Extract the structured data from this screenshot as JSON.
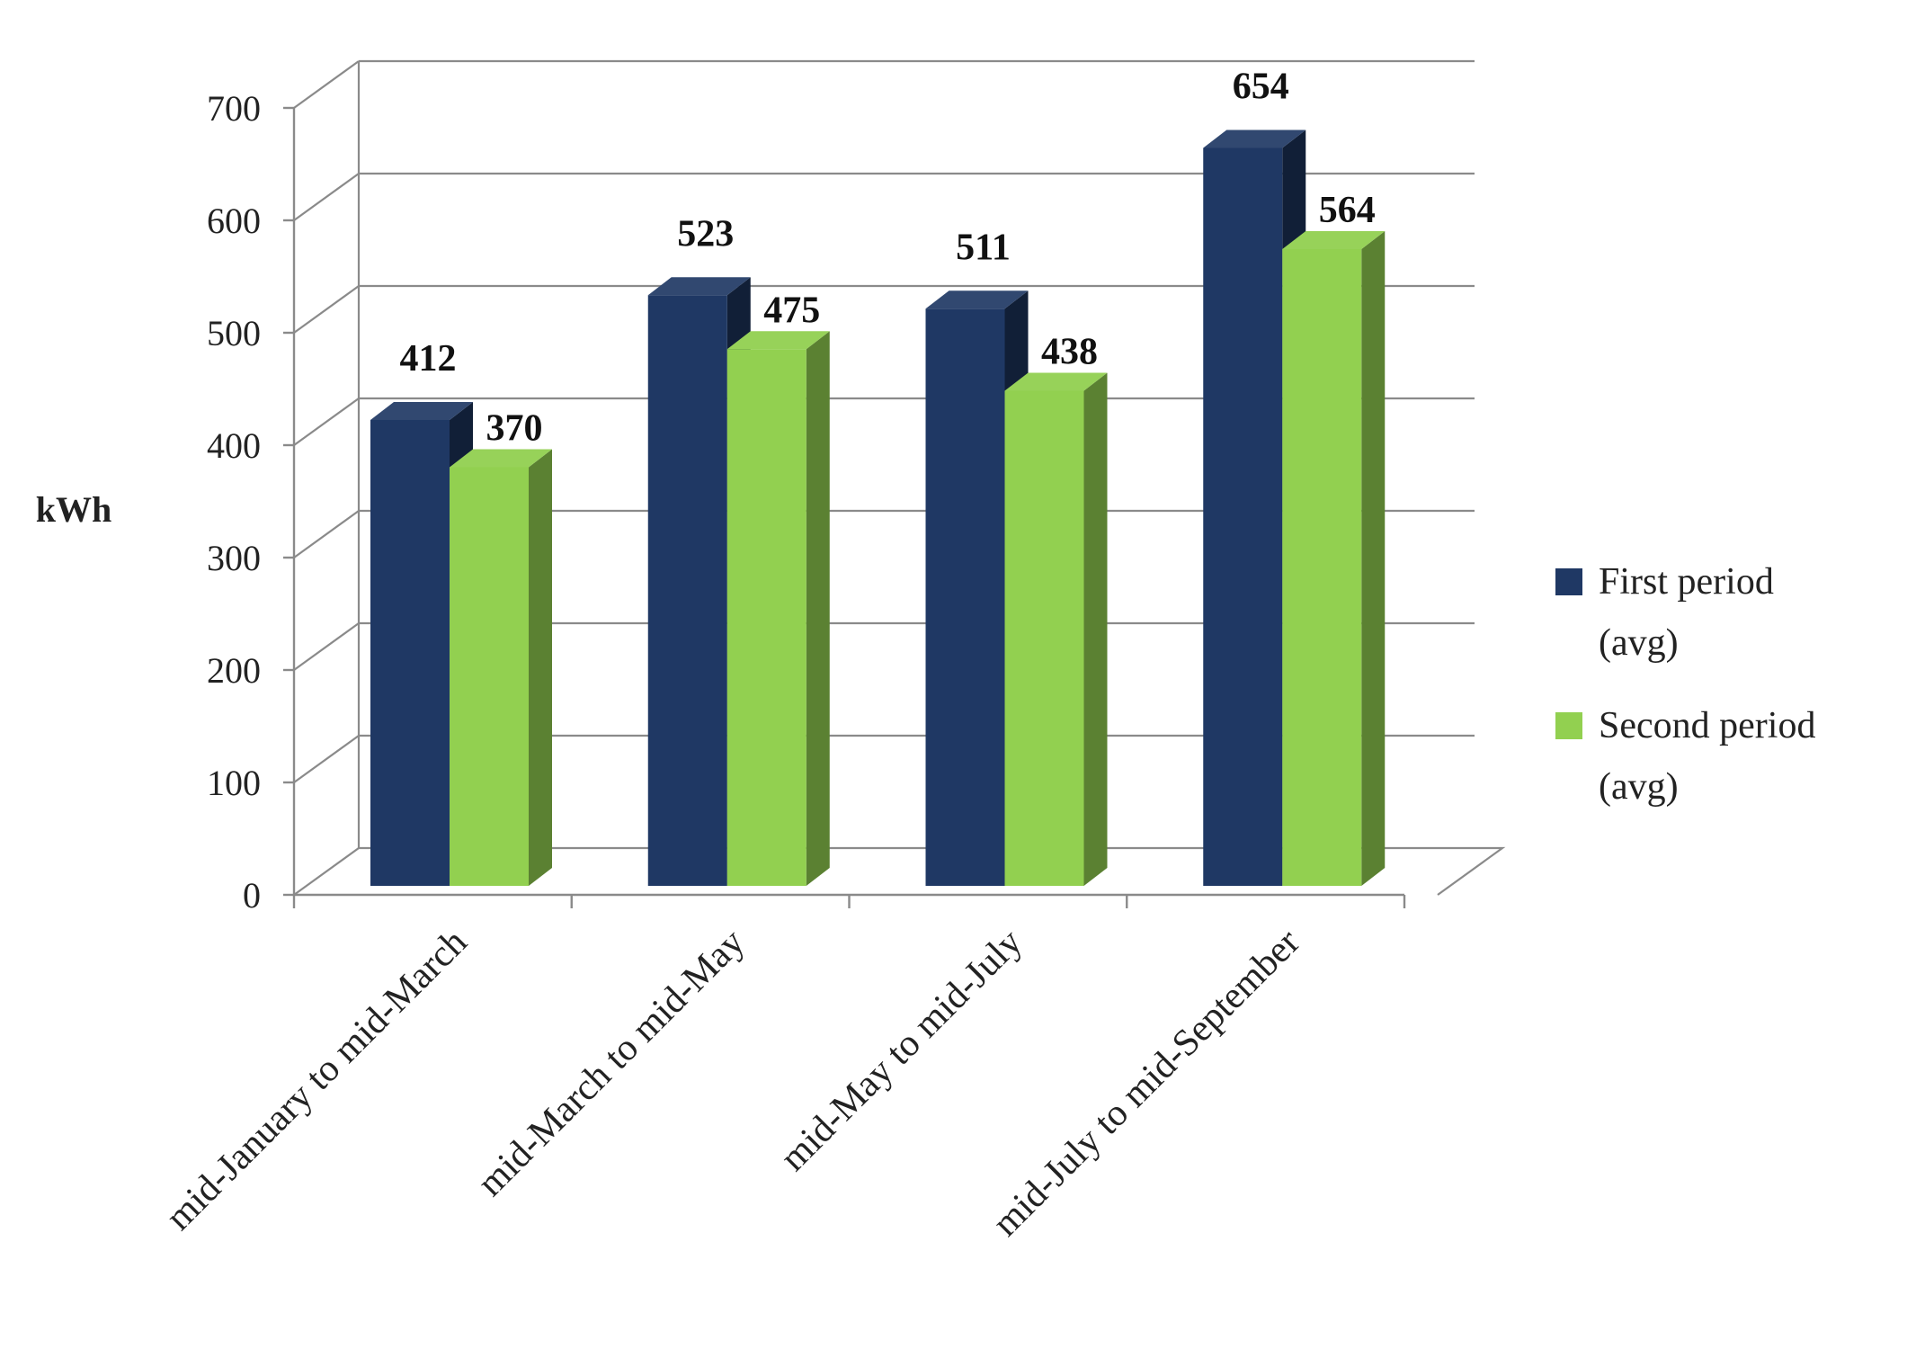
{
  "chart_data": {
    "type": "bar",
    "title": "",
    "xlabel": "",
    "ylabel": "kWh",
    "ylim": [
      0,
      700
    ],
    "yticks": [
      "0",
      "100",
      "200",
      "300",
      "400",
      "500",
      "600",
      "700"
    ],
    "grid": true,
    "legend_position": "right",
    "categories": [
      "mid-January to mid-March",
      "mid-March to mid-May",
      "mid-May to mid-July",
      "mid-July to mid-September"
    ],
    "series": [
      {
        "name": "First period (avg)",
        "legend_lines": [
          "First period",
          "(avg)"
        ],
        "color": "#1f3864",
        "values": [
          412,
          523,
          511,
          654
        ]
      },
      {
        "name": "Second period (avg)",
        "legend_lines": [
          "Second period",
          "(avg)"
        ],
        "color": "#92d050",
        "values": [
          370,
          475,
          438,
          564
        ]
      }
    ]
  }
}
